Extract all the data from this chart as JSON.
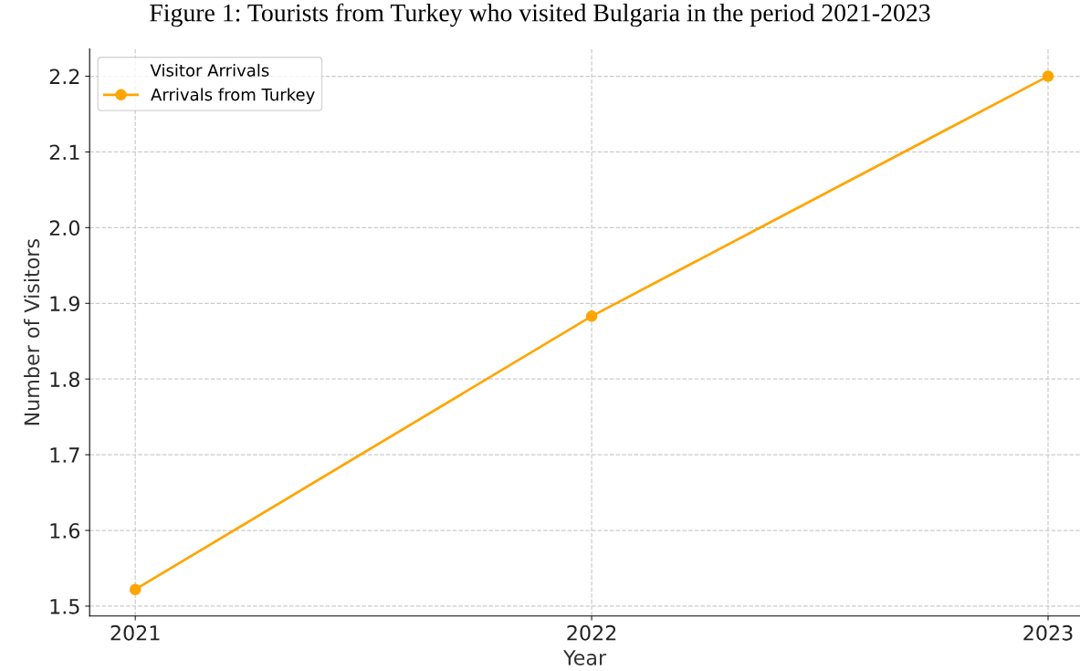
{
  "chart_data": {
    "type": "line",
    "title": "Figure 1: Tourists from Turkey who visited Bulgaria in the period 2021-2023",
    "xlabel": "Year",
    "ylabel": "Number of Visitors",
    "legend_title": "Visitor Arrivals",
    "x": [
      2021,
      2022,
      2023
    ],
    "series": [
      {
        "name": "Arrivals from Turkey",
        "color": "#ffa500",
        "values": [
          1.522,
          1.883,
          2.2
        ]
      }
    ],
    "xlim": [
      2020.9,
      2023.07
    ],
    "xticks": [
      2021,
      2022,
      2023
    ],
    "ylim": [
      1.487,
      2.236
    ],
    "yticks": [
      1.5,
      1.6,
      1.7,
      1.8,
      1.9,
      {
        "value": 2.0,
        "label": "2.0"
      },
      2.1,
      2.2
    ],
    "grid": true,
    "legend": "top left",
    "marker": "circle",
    "line_style": "solid"
  }
}
